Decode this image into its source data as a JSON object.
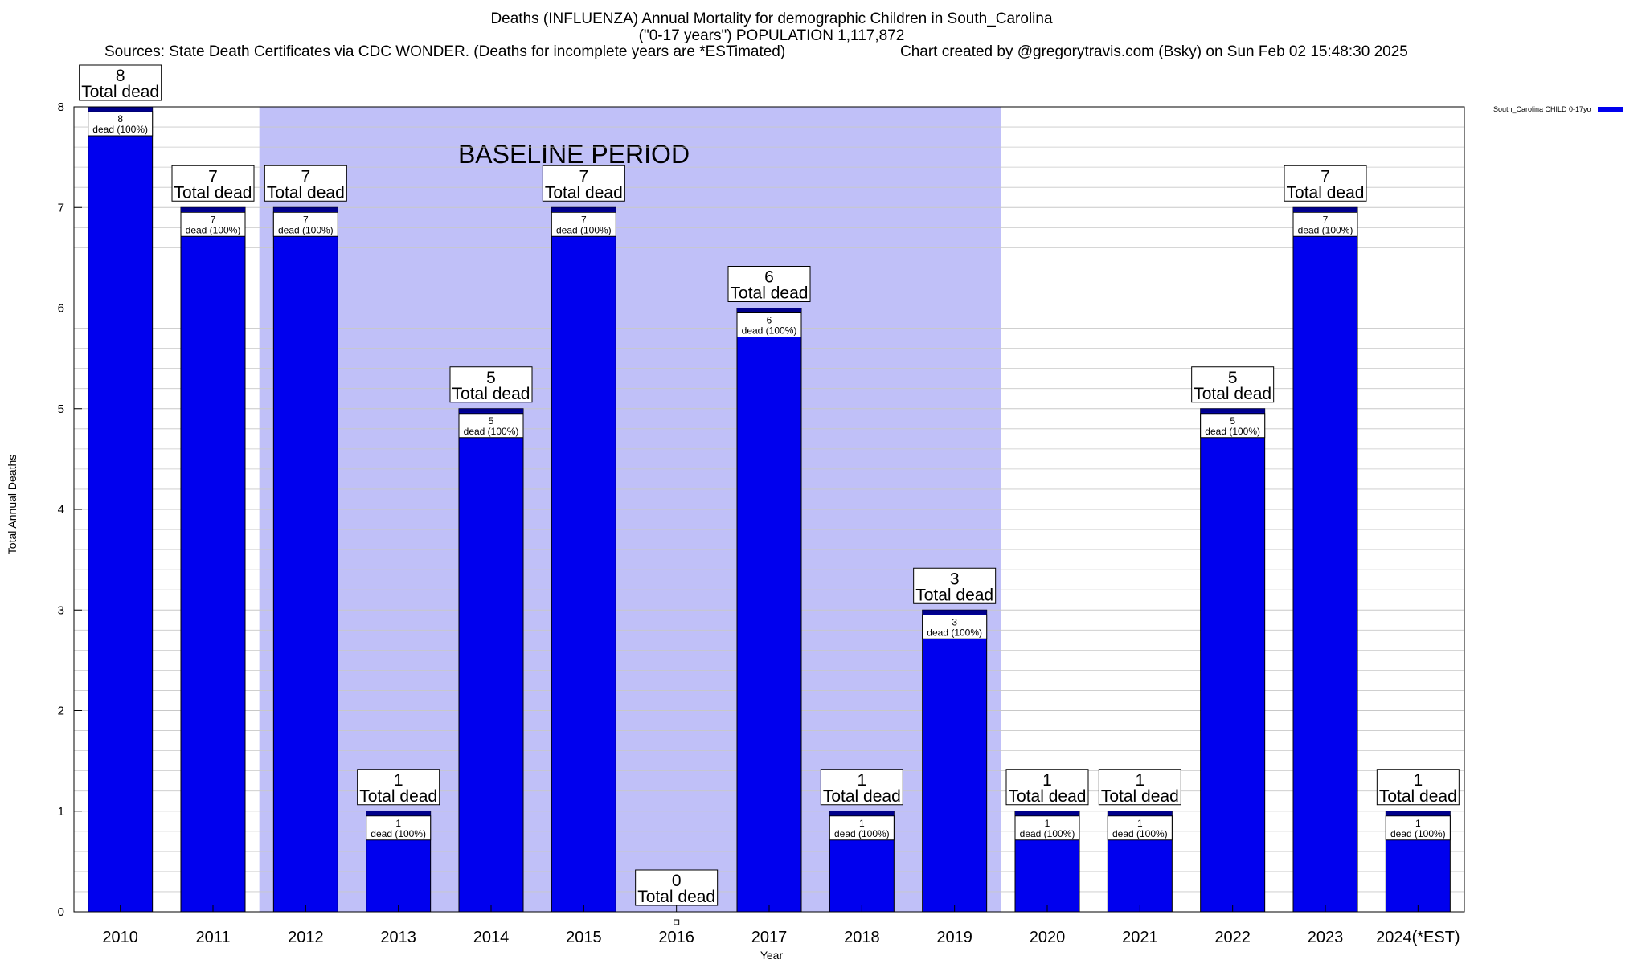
{
  "header": {
    "title_line1": "Deaths (INFLUENZA) Annual Mortality for demographic Children in South_Carolina",
    "title_line2": "(\"0-17 years\") POPULATION 1,117,872",
    "source_text": "Sources: State Death Certificates via CDC WONDER. (Deaths for incomplete years are *ESTimated)",
    "credit_text": "Chart created by @gregorytravis.com (Bsky) on Sun Feb 02 15:48:30 2025"
  },
  "colors": {
    "bar": "#0000ee",
    "bar_top": "#00008b",
    "baseline_shade": "#c0c0f8",
    "grid": "#c8c8c8"
  },
  "chart_data": {
    "type": "bar",
    "title": "Deaths (INFLUENZA) Annual Mortality for demographic Children in South_Carolina",
    "xlabel": "Year",
    "ylabel": "Total Annual Deaths",
    "ylim": [
      0,
      8
    ],
    "yticks": [
      0,
      1,
      2,
      3,
      4,
      5,
      6,
      7,
      8
    ],
    "categories": [
      "2010",
      "2011",
      "2012",
      "2013",
      "2014",
      "2015",
      "2016",
      "2017",
      "2018",
      "2019",
      "2020",
      "2021",
      "2022",
      "2023",
      "2024(*EST)"
    ],
    "series": [
      {
        "name": "South_Carolina CHILD 0-17yo",
        "values": [
          8,
          7,
          7,
          1,
          5,
          7,
          0,
          6,
          1,
          3,
          1,
          1,
          5,
          7,
          1
        ]
      }
    ],
    "total_label": "Total dead",
    "inner_label": "dead (100%)",
    "baseline": {
      "label": "BASELINE PERIOD",
      "from": "2012",
      "to": "2019"
    },
    "legend_position": "top-right",
    "grid": true
  }
}
